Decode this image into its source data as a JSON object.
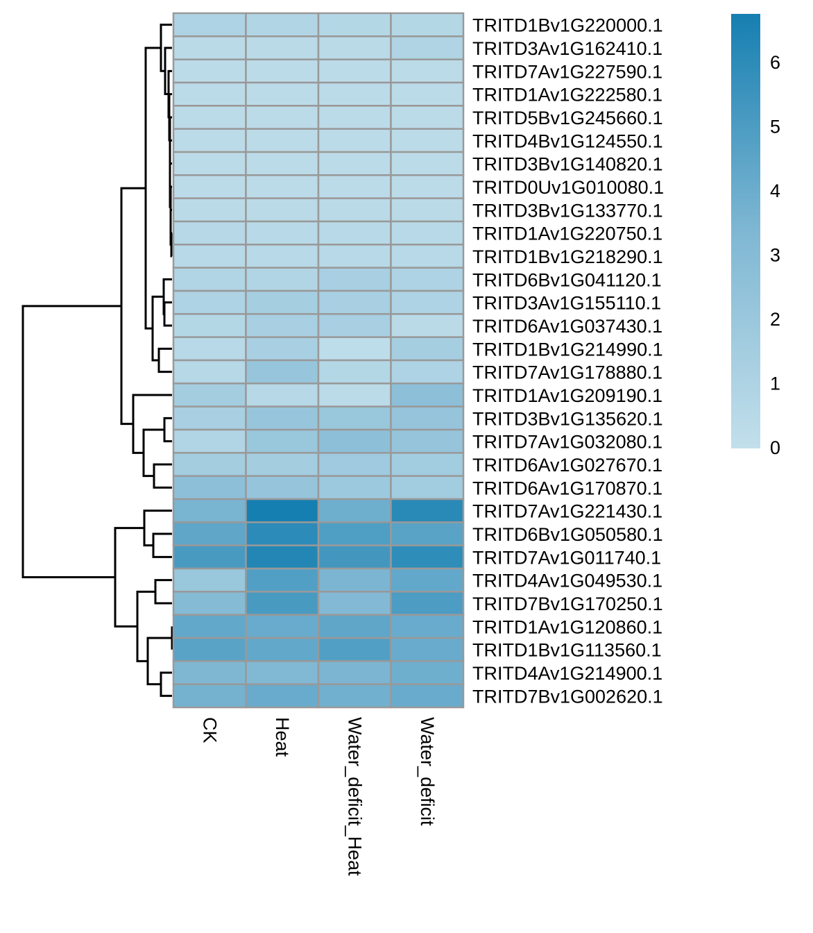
{
  "chart_data": {
    "type": "heatmap",
    "title": "",
    "columns": [
      "CK",
      "Heat",
      "Water_deficit_Heat",
      "Water_deficit"
    ],
    "rows": [
      "TRITD1Bv1G220000.1",
      "TRITD3Av1G162410.1",
      "TRITD7Av1G227590.1",
      "TRITD1Av1G222580.1",
      "TRITD5Bv1G245660.1",
      "TRITD4Bv1G124550.1",
      "TRITD3Bv1G140820.1",
      "TRITD0Uv1G010080.1",
      "TRITD3Bv1G133770.1",
      "TRITD1Av1G220750.1",
      "TRITD1Bv1G218290.1",
      "TRITD6Bv1G041120.1",
      "TRITD3Av1G155110.1",
      "TRITD6Av1G037430.1",
      "TRITD1Bv1G214990.1",
      "TRITD7Av1G178880.1",
      "TRITD1Av1G209190.1",
      "TRITD3Bv1G135620.1",
      "TRITD7Av1G032080.1",
      "TRITD6Av1G027670.1",
      "TRITD6Av1G170870.1",
      "TRITD7Av1G221430.1",
      "TRITD6Bv1G050580.1",
      "TRITD7Av1G011740.1",
      "TRITD4Av1G049530.1",
      "TRITD7Bv1G170250.1",
      "TRITD1Av1G120860.1",
      "TRITD1Bv1G113560.1",
      "TRITD4Av1G214900.1",
      "TRITD7Bv1G002620.1"
    ],
    "values": [
      [
        1.0,
        0.8,
        0.7,
        0.7
      ],
      [
        0.4,
        0.4,
        0.4,
        0.9
      ],
      [
        0.3,
        0.3,
        0.3,
        0.3
      ],
      [
        0.3,
        0.3,
        0.3,
        0.3
      ],
      [
        0.3,
        0.3,
        0.3,
        0.3
      ],
      [
        0.3,
        0.3,
        0.3,
        0.3
      ],
      [
        0.3,
        0.3,
        0.3,
        0.3
      ],
      [
        0.3,
        0.3,
        0.3,
        0.3
      ],
      [
        0.4,
        0.4,
        0.4,
        0.4
      ],
      [
        0.6,
        0.5,
        0.5,
        0.5
      ],
      [
        0.5,
        0.5,
        0.5,
        0.5
      ],
      [
        0.8,
        0.8,
        1.3,
        1.0
      ],
      [
        1.0,
        1.4,
        1.3,
        1.0
      ],
      [
        0.7,
        1.3,
        1.3,
        0.4
      ],
      [
        0.5,
        1.3,
        0.2,
        1.4
      ],
      [
        0.6,
        2.1,
        0.7,
        1.0
      ],
      [
        1.5,
        0.6,
        0.3,
        2.6
      ],
      [
        1.3,
        2.1,
        2.0,
        2.2
      ],
      [
        0.8,
        2.0,
        2.6,
        2.2
      ],
      [
        1.5,
        1.5,
        1.7,
        1.6
      ],
      [
        2.6,
        2.2,
        1.8,
        1.6
      ],
      [
        3.5,
        6.6,
        3.8,
        6.0
      ],
      [
        4.3,
        5.9,
        4.8,
        4.5
      ],
      [
        5.0,
        6.2,
        5.2,
        5.8
      ],
      [
        2.0,
        4.7,
        3.4,
        4.2
      ],
      [
        3.0,
        5.0,
        3.1,
        4.9
      ],
      [
        4.2,
        4.0,
        4.3,
        4.0
      ],
      [
        4.5,
        4.2,
        4.7,
        4.0
      ],
      [
        3.3,
        3.2,
        3.4,
        3.8
      ],
      [
        3.6,
        4.0,
        3.7,
        4.0
      ]
    ],
    "row_dendrogram": true,
    "colorbar": {
      "min": 0,
      "max": 6.6,
      "ticks": [
        "0",
        "1",
        "2",
        "3",
        "4",
        "5",
        "6"
      ],
      "low_color": "#c2dfeb",
      "mid_color": "#7fb7d3",
      "high_color": "#167fb1"
    },
    "cell_border_color": "#999999",
    "legend_position": "right"
  }
}
